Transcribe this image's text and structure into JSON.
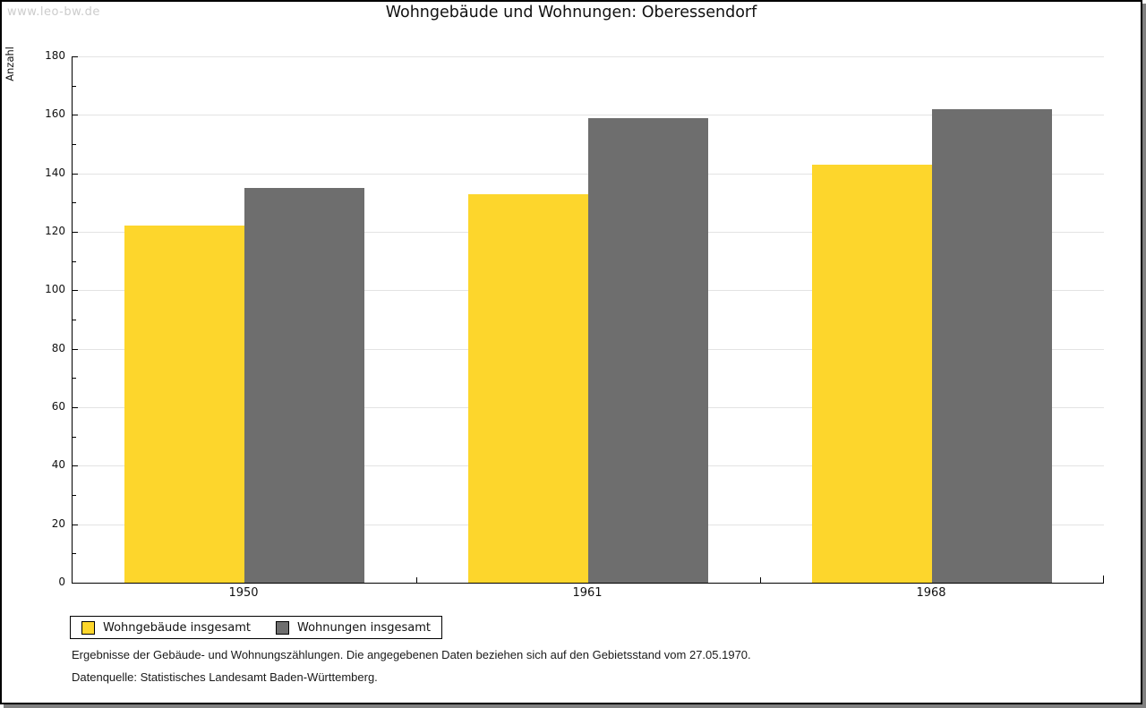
{
  "watermark": "www.leo-bw.de",
  "title": "Wohngebäude und Wohnungen: Oberessendorf",
  "chart_data": {
    "type": "bar",
    "title": "Wohngebäude und Wohnungen: Oberessendorf",
    "categories": [
      "1950",
      "1961",
      "1968"
    ],
    "series": [
      {
        "name": "Wohngebäude insgesamt",
        "color": "#FDD62C",
        "values": [
          122,
          133,
          143
        ]
      },
      {
        "name": "Wohnungen insgesamt",
        "color": "#6E6E6E",
        "values": [
          135,
          159,
          162
        ]
      }
    ],
    "xlabel": "",
    "ylabel": "Anzahl",
    "ylim": [
      0,
      180
    ],
    "yticks": [
      0,
      20,
      40,
      60,
      80,
      100,
      120,
      140,
      160,
      180
    ],
    "minor_tick_step": 10,
    "grid": true,
    "legend_position": "bottom-left"
  },
  "footnotes": [
    "Ergebnisse der Gebäude- und Wohnungszählungen. Die angegebenen Daten beziehen sich auf den Gebietsstand vom 27.05.1970.",
    "Datenquelle: Statistisches Landesamt Baden-Württemberg."
  ],
  "colors": {
    "bar_yellow": "#FDD62C",
    "bar_gray": "#6E6E6E",
    "gridline": "#E3E3E3",
    "axis": "#000000",
    "watermark": "#CCCCCC",
    "frame_shadow": "#808080"
  }
}
